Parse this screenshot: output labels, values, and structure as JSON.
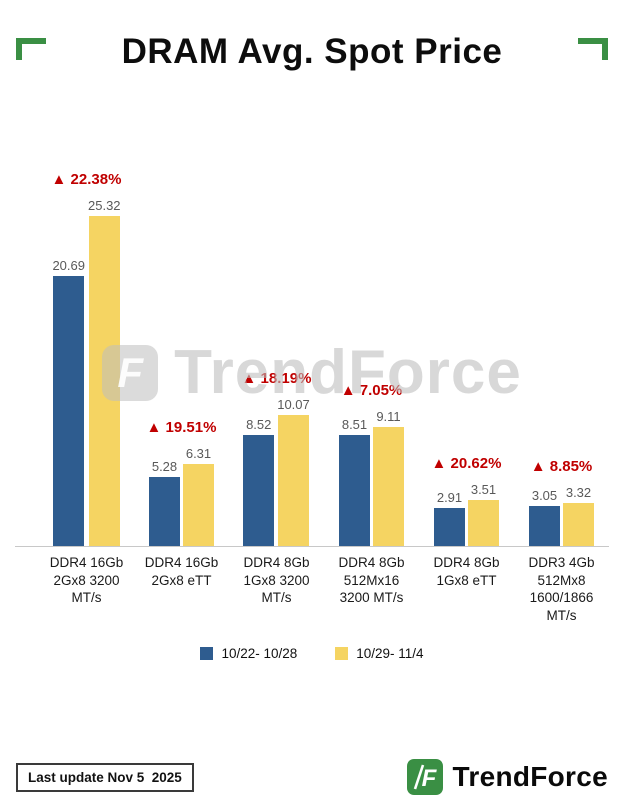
{
  "title": "DRAM Avg. Spot Price",
  "watermark": {
    "text": "TrendForce",
    "glyph": "F"
  },
  "colors": {
    "bar_blue": "#2e5c8f",
    "bar_yellow": "#f5d462",
    "pct_red": "#c00000",
    "brand_green": "#3a8f44",
    "watermark_gray": "#cfcfcf"
  },
  "chart_data": {
    "type": "bar",
    "title": "DRAM Avg. Spot Price",
    "categories": [
      "DDR4 16Gb 2Gx8 3200 MT/s",
      "DDR4 16Gb 2Gx8 eTT",
      "DDR4 8Gb 1Gx8 3200 MT/s",
      "DDR4 8Gb 512Mx16 3200 MT/s",
      "DDR4 8Gb 1Gx8 eTT",
      "DDR3 4Gb 512Mx8 1600/1866 MT/s"
    ],
    "series": [
      {
        "name": "10/22- 10/28",
        "color": "#2e5c8f",
        "values": [
          20.69,
          5.28,
          8.52,
          8.51,
          2.91,
          3.05
        ]
      },
      {
        "name": "10/29- 11/4",
        "color": "#f5d462",
        "values": [
          25.32,
          6.31,
          10.07,
          9.11,
          3.51,
          3.32
        ]
      }
    ],
    "pct_change_labels": [
      "▲ 22.38%",
      "▲ 19.51%",
      "▲ 18.19%",
      "▲ 7.05%",
      "▲ 20.62%",
      "▲ 8.85%"
    ],
    "ylim": [
      0,
      26
    ],
    "grid": false,
    "legend_position": "bottom",
    "value_label_decimals": 2
  },
  "footer": {
    "last_update": "Last update Nov 5  2025",
    "brand": "TrendForce"
  }
}
